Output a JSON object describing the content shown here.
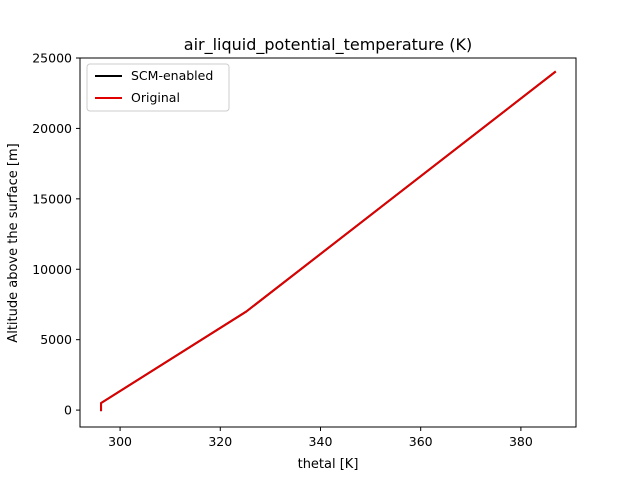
{
  "chart_data": {
    "type": "line",
    "title": "air_liquid_potential_temperature (K)",
    "xlabel": "thetal [K]",
    "ylabel": "Altitude above the surface [m]",
    "xlim": [
      292.0,
      391.0
    ],
    "ylim": [
      -1200,
      25000
    ],
    "xticks": [
      300,
      320,
      340,
      360,
      380
    ],
    "yticks": [
      0,
      5000,
      10000,
      15000,
      20000,
      25000
    ],
    "grid": false,
    "legend_position": "upper left",
    "series": [
      {
        "name": "SCM-enabled",
        "color": "#000000",
        "x": [
          296.2,
          296.2,
          325.2,
          386.8
        ],
        "y": [
          0,
          500,
          7000,
          24000
        ]
      },
      {
        "name": "Original",
        "color": "#e00000",
        "x": [
          296.2,
          296.2,
          325.2,
          386.8
        ],
        "y": [
          0,
          500,
          7000,
          24000
        ]
      }
    ]
  }
}
